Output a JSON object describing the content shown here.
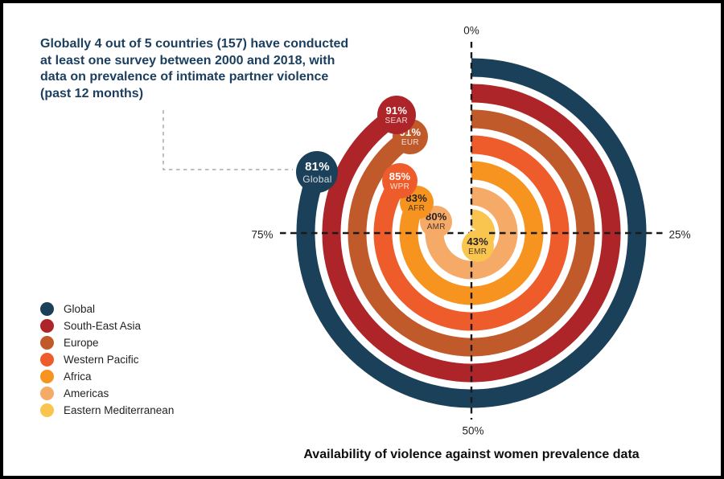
{
  "figure": {
    "annotation": "Globally 4 out of 5 countries (157) have conducted at least one survey between 2000 and 2018, with data on prevalence of intimate partner violence (past 12 months)",
    "caption": "Availability of violence against women prevalence data"
  },
  "chart_data": {
    "type": "radial-progress-rings",
    "title": "Availability of violence against women prevalence data",
    "unit": "% of countries with at least one survey, 2000-2018",
    "angle_scale": {
      "start_at_top": "0%",
      "direction": "clockwise",
      "full_circle_value": 100
    },
    "axis_ticks": {
      "top": "0%",
      "right": "25%",
      "bottom": "50%",
      "left": "75%"
    },
    "series": [
      {
        "region": "Global",
        "code": "Global",
        "value": 81,
        "pct_label": "81%",
        "color": "#1b4059",
        "text_color": "#ffffff"
      },
      {
        "region": "South-East Asia",
        "code": "SEAR",
        "value": 91,
        "pct_label": "91%",
        "color": "#ad2429",
        "text_color": "#ffffff"
      },
      {
        "region": "Europe",
        "code": "EUR",
        "value": 91,
        "pct_label": "91%",
        "color": "#c05a2b",
        "text_color": "#ffffff"
      },
      {
        "region": "Western Pacific",
        "code": "WPR",
        "value": 85,
        "pct_label": "85%",
        "color": "#ee5c2c",
        "text_color": "#ffffff"
      },
      {
        "region": "Africa",
        "code": "AFR",
        "value": 83,
        "pct_label": "83%",
        "color": "#f6941f",
        "text_color": "#231f20"
      },
      {
        "region": "Americas",
        "code": "AMR",
        "value": 80,
        "pct_label": "80%",
        "color": "#f5aa67",
        "text_color": "#231f20"
      },
      {
        "region": "Eastern Mediterranean",
        "code": "EMR",
        "value": 43,
        "pct_label": "43%",
        "color": "#f9c54f",
        "text_color": "#231f20"
      }
    ],
    "legend_position": "bottom-left",
    "grid": "dashed crosshair through ring center"
  },
  "colors": {
    "annotation_text": "#1c3e5e",
    "axis_text": "#231f20",
    "crosshair": "#1a1a1a",
    "connector": "#a7a9ac",
    "background": "#ffffff",
    "border": "#000000"
  }
}
